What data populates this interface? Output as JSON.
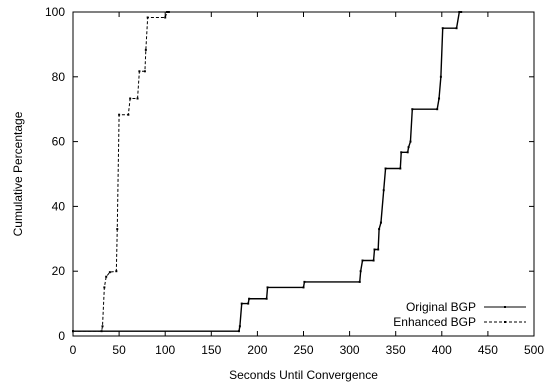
{
  "chart_data": {
    "type": "line",
    "title": "",
    "xlabel": "Seconds Until Convergence",
    "ylabel": "Cumulative Percentage",
    "xlim": [
      0,
      500
    ],
    "ylim": [
      0,
      100
    ],
    "xticks": [
      0,
      50,
      100,
      150,
      200,
      250,
      300,
      350,
      400,
      450,
      500
    ],
    "yticks": [
      0,
      20,
      40,
      60,
      80,
      100
    ],
    "grid": false,
    "legend_position": "bottom-right",
    "series": [
      {
        "name": "Original BGP",
        "line_style": "solid",
        "points": [
          [
            0,
            1.5
          ],
          [
            180,
            1.5
          ],
          [
            181,
            3
          ],
          [
            183,
            10
          ],
          [
            190,
            10
          ],
          [
            191,
            11.5
          ],
          [
            210,
            11.5
          ],
          [
            211,
            15
          ],
          [
            250,
            15
          ],
          [
            251,
            16.7
          ],
          [
            311,
            16.7
          ],
          [
            312,
            20
          ],
          [
            314,
            23.3
          ],
          [
            326,
            23.3
          ],
          [
            327,
            26.7
          ],
          [
            331,
            26.7
          ],
          [
            332,
            33
          ],
          [
            334,
            35
          ],
          [
            337,
            45
          ],
          [
            339,
            51.7
          ],
          [
            355,
            51.7
          ],
          [
            356,
            56.7
          ],
          [
            363,
            56.7
          ],
          [
            364,
            58.3
          ],
          [
            366,
            60
          ],
          [
            368,
            70
          ],
          [
            395,
            70
          ],
          [
            397,
            73.3
          ],
          [
            399,
            80
          ],
          [
            401,
            95
          ],
          [
            416,
            95
          ],
          [
            419,
            100
          ],
          [
            421,
            100
          ]
        ]
      },
      {
        "name": "Enhanced BGP",
        "line_style": "dashed",
        "points": [
          [
            0,
            1.5
          ],
          [
            31,
            1.5
          ],
          [
            32,
            3
          ],
          [
            34,
            15
          ],
          [
            36,
            18.3
          ],
          [
            40,
            19.7
          ],
          [
            47,
            20
          ],
          [
            48,
            33
          ],
          [
            50,
            68.3
          ],
          [
            60,
            68.3
          ],
          [
            62,
            73.3
          ],
          [
            70,
            73.3
          ],
          [
            72,
            81.7
          ],
          [
            78,
            81.7
          ],
          [
            79,
            88.3
          ],
          [
            81,
            98.3
          ],
          [
            100,
            98.3
          ],
          [
            102,
            100
          ],
          [
            104,
            100
          ]
        ]
      }
    ]
  }
}
